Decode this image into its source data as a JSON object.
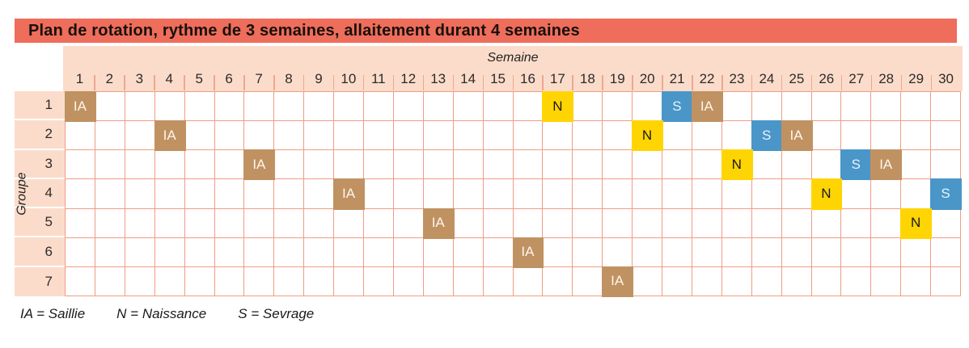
{
  "title": "Plan de rotation, rythme de 3 semaines, allaitement durant 4 semaines",
  "colors": {
    "title_bar": "#EE6D5B",
    "header_bg": "#FBDCCB",
    "grid_line": "#F29C84",
    "tick": "#EEA78F",
    "ia": "#C09262",
    "ia_text": "#FDF6EC",
    "n": "#FFD403",
    "n_text": "#1A1A1A",
    "s": "#4A96C8",
    "s_text": "#EAF3FA"
  },
  "legend_items": [
    "IA = Saillie",
    "N = Naissance",
    "S = Sevrage"
  ],
  "chart_data": {
    "type": "table",
    "title": "Plan de rotation, rythme de 3 semaines, allaitement durant 4 semaines",
    "xlabel": "Semaine",
    "ylabel": "Groupe",
    "x": [
      1,
      2,
      3,
      4,
      5,
      6,
      7,
      8,
      9,
      10,
      11,
      12,
      13,
      14,
      15,
      16,
      17,
      18,
      19,
      20,
      21,
      22,
      23,
      24,
      25,
      26,
      27,
      28,
      29,
      30
    ],
    "legend": {
      "IA": "Saillie",
      "N": "Naissance",
      "S": "Sevrage"
    },
    "rows": [
      {
        "group": 1,
        "events": [
          {
            "week": 1,
            "code": "IA"
          },
          {
            "week": 17,
            "code": "N"
          },
          {
            "week": 21,
            "code": "S"
          },
          {
            "week": 22,
            "code": "IA"
          }
        ]
      },
      {
        "group": 2,
        "events": [
          {
            "week": 4,
            "code": "IA"
          },
          {
            "week": 20,
            "code": "N"
          },
          {
            "week": 24,
            "code": "S"
          },
          {
            "week": 25,
            "code": "IA"
          }
        ]
      },
      {
        "group": 3,
        "events": [
          {
            "week": 7,
            "code": "IA"
          },
          {
            "week": 23,
            "code": "N"
          },
          {
            "week": 27,
            "code": "S"
          },
          {
            "week": 28,
            "code": "IA"
          }
        ]
      },
      {
        "group": 4,
        "events": [
          {
            "week": 10,
            "code": "IA"
          },
          {
            "week": 26,
            "code": "N"
          },
          {
            "week": 30,
            "code": "S"
          }
        ]
      },
      {
        "group": 5,
        "events": [
          {
            "week": 13,
            "code": "IA"
          },
          {
            "week": 29,
            "code": "N"
          }
        ]
      },
      {
        "group": 6,
        "events": [
          {
            "week": 16,
            "code": "IA"
          }
        ]
      },
      {
        "group": 7,
        "events": [
          {
            "week": 19,
            "code": "IA"
          }
        ]
      }
    ]
  }
}
